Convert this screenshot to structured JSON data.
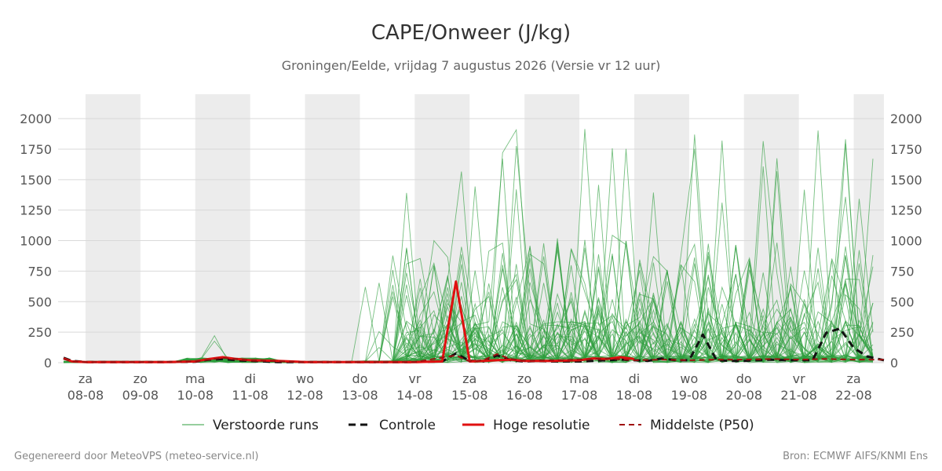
{
  "title": "CAPE/Onweer (J/kg)",
  "subtitle": "Groningen/Eelde, vrijdag  7 augustus 2026 (Versie vr 12 uur)",
  "footer_left": "Gegenereerd door MeteoVPS (meteo-service.nl)",
  "footer_right": "Bron: ECMWF AIFS/KNMI Ens",
  "colors": {
    "ensemble": "#2e9e3e",
    "control": "#111111",
    "hires": "#e01010",
    "median": "#a01010",
    "weekend_band": "#ececec",
    "grid": "#d9d9d9"
  },
  "legend": [
    {
      "label": "Verstoorde runs",
      "style": "ensemble"
    },
    {
      "label": "Controle",
      "style": "control"
    },
    {
      "label": "Hoge resolutie",
      "style": "hires"
    },
    {
      "label": "Middelste (P50)",
      "style": "median"
    }
  ],
  "chart_data": {
    "type": "line",
    "x_unit": "days",
    "x_range": [
      7.5,
      22.55
    ],
    "ylim": [
      0,
      2200
    ],
    "yticks": [
      0,
      250,
      500,
      750,
      1000,
      1250,
      1500,
      1750,
      2000
    ],
    "grid": true,
    "legend_position": "bottom",
    "x_ticks": [
      {
        "x": 8,
        "day": "za",
        "date": "08-08"
      },
      {
        "x": 9,
        "day": "zo",
        "date": "09-08"
      },
      {
        "x": 10,
        "day": "ma",
        "date": "10-08"
      },
      {
        "x": 11,
        "day": "di",
        "date": "11-08"
      },
      {
        "x": 12,
        "day": "wo",
        "date": "12-08"
      },
      {
        "x": 13,
        "day": "do",
        "date": "13-08"
      },
      {
        "x": 14,
        "day": "vr",
        "date": "14-08"
      },
      {
        "x": 15,
        "day": "za",
        "date": "15-08"
      },
      {
        "x": 16,
        "day": "zo",
        "date": "16-08"
      },
      {
        "x": 17,
        "day": "ma",
        "date": "17-08"
      },
      {
        "x": 18,
        "day": "di",
        "date": "18-08"
      },
      {
        "x": 19,
        "day": "wo",
        "date": "19-08"
      },
      {
        "x": 20,
        "day": "do",
        "date": "20-08"
      },
      {
        "x": 21,
        "day": "vr",
        "date": "21-08"
      },
      {
        "x": 22,
        "day": "za",
        "date": "22-08"
      }
    ],
    "shaded_bands": [
      [
        8,
        9
      ],
      [
        10,
        11
      ],
      [
        12,
        13
      ],
      [
        14,
        15
      ],
      [
        16,
        17
      ],
      [
        18,
        19
      ],
      [
        20,
        21
      ],
      [
        22,
        22.55
      ]
    ],
    "series": [
      {
        "name": "Controle",
        "style": "control",
        "x": [
          7.6,
          7.75,
          8.0,
          8.5,
          9.0,
          9.5,
          10.0,
          10.25,
          10.5,
          10.75,
          11.0,
          11.25,
          11.5,
          12.0,
          13.0,
          14.0,
          14.5,
          14.75,
          15.0,
          15.25,
          15.5,
          15.75,
          16.0,
          16.25,
          16.5,
          17.0,
          17.25,
          17.5,
          17.75,
          18.0,
          18.25,
          18.5,
          18.75,
          19.0,
          19.25,
          19.5,
          19.75,
          20.0,
          20.25,
          20.5,
          20.75,
          21.0,
          21.25,
          21.5,
          21.75,
          22.0,
          22.25,
          22.55
        ],
        "y": [
          40,
          15,
          5,
          5,
          5,
          5,
          8,
          25,
          30,
          20,
          15,
          10,
          5,
          5,
          5,
          5,
          10,
          75,
          15,
          10,
          60,
          20,
          10,
          15,
          10,
          10,
          15,
          20,
          25,
          20,
          15,
          35,
          20,
          20,
          230,
          20,
          15,
          15,
          20,
          25,
          20,
          20,
          20,
          245,
          280,
          120,
          50,
          20
        ]
      },
      {
        "name": "Hoge resolutie",
        "style": "hires",
        "x": [
          7.6,
          7.75,
          8.0,
          8.5,
          9.0,
          9.5,
          10.0,
          10.25,
          10.5,
          10.75,
          11.0,
          11.5,
          12.0,
          13.0,
          14.0,
          14.5,
          14.75,
          15.0,
          15.25,
          15.5,
          15.75,
          16.0,
          16.5,
          17.0,
          17.25,
          17.5,
          17.75,
          18.0
        ],
        "y": [
          35,
          10,
          5,
          5,
          5,
          5,
          10,
          30,
          45,
          30,
          20,
          15,
          5,
          5,
          5,
          10,
          665,
          10,
          15,
          20,
          25,
          15,
          15,
          20,
          35,
          30,
          45,
          30
        ]
      },
      {
        "name": "Middelste (P50)",
        "style": "median",
        "x": [
          7.6,
          7.75,
          8.0,
          8.5,
          9.0,
          10.0,
          10.5,
          11.0,
          12.0,
          13.0,
          14.0,
          14.75,
          15.0,
          15.25,
          15.5,
          15.75,
          16.0,
          16.5,
          17.0,
          17.5,
          18.0,
          18.5,
          19.0,
          19.5,
          20.0,
          20.5,
          21.0,
          21.5,
          22.0,
          22.55
        ],
        "y": [
          30,
          10,
          5,
          5,
          5,
          10,
          40,
          20,
          5,
          5,
          5,
          60,
          10,
          20,
          70,
          30,
          15,
          20,
          25,
          35,
          20,
          25,
          20,
          25,
          25,
          30,
          25,
          30,
          25,
          25
        ]
      }
    ]
  }
}
